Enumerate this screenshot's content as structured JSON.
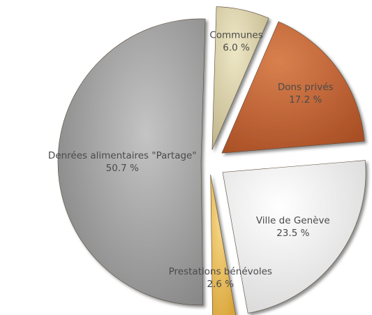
{
  "chart_data": {
    "type": "pie",
    "title": "",
    "exploded": true,
    "slices": [
      {
        "name": "Communes",
        "value": 6.0,
        "label": "6.0 %",
        "color": "#d9d0a8"
      },
      {
        "name": "Dons privés",
        "value": 17.2,
        "label": "17.2 %",
        "color": "#c8683a"
      },
      {
        "name": "Ville de Genève",
        "value": 23.5,
        "label": "23.5 %",
        "color": "#f1f1f1"
      },
      {
        "name": "Prestations bénévoles",
        "value": 2.6,
        "label": "2.6 %",
        "color": "#f0c25a"
      },
      {
        "name": "Denrées alimentaires \"Partage\"",
        "value": 50.7,
        "label": "50.7 %",
        "color": "#9e9e9e"
      }
    ]
  }
}
